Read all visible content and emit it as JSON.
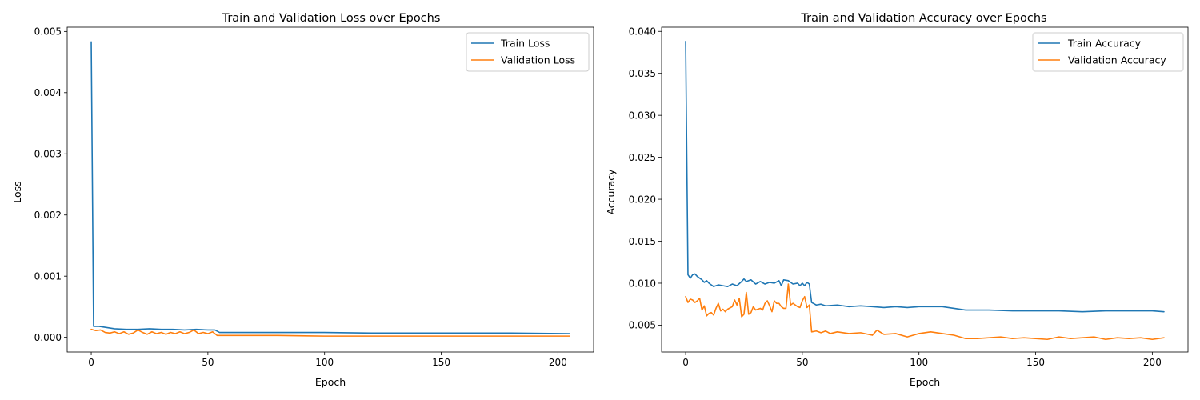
{
  "chart_data": [
    {
      "type": "line",
      "title": "Train and Validation Loss over Epochs",
      "xlabel": "Epoch",
      "ylabel": "Loss",
      "xlim": [
        -10.3,
        215.3
      ],
      "ylim": [
        -0.00024,
        0.00507
      ],
      "xticks": [
        0,
        50,
        100,
        150,
        200
      ],
      "xtick_labels": [
        "0",
        "50",
        "100",
        "150",
        "200"
      ],
      "yticks": [
        0,
        0.001,
        0.002,
        0.003,
        0.004,
        0.005
      ],
      "ytick_labels": [
        "0.000",
        "0.001",
        "0.002",
        "0.003",
        "0.004",
        "0.005"
      ],
      "grid": false,
      "legend_position": "top-right",
      "series": [
        {
          "name": "Train Loss",
          "color": "#1f77b4",
          "points": [
            [
              0,
              0.00483
            ],
            [
              1,
              0.00018
            ],
            [
              3,
              0.00018
            ],
            [
              5,
              0.00017
            ],
            [
              10,
              0.00014
            ],
            [
              15,
              0.00013
            ],
            [
              20,
              0.00013
            ],
            [
              25,
              0.00014
            ],
            [
              30,
              0.00013
            ],
            [
              35,
              0.00013
            ],
            [
              40,
              0.00012
            ],
            [
              45,
              0.00013
            ],
            [
              50,
              0.00012
            ],
            [
              53,
              0.00012
            ],
            [
              55,
              8e-05
            ],
            [
              60,
              8e-05
            ],
            [
              80,
              8e-05
            ],
            [
              100,
              8e-05
            ],
            [
              120,
              7e-05
            ],
            [
              150,
              7e-05
            ],
            [
              180,
              7e-05
            ],
            [
              205,
              6e-05
            ]
          ]
        },
        {
          "name": "Validation Loss",
          "color": "#ff7f0e",
          "points": [
            [
              0,
              0.00013
            ],
            [
              2,
              0.00011
            ],
            [
              4,
              0.00012
            ],
            [
              6,
              8e-05
            ],
            [
              8,
              7e-05
            ],
            [
              10,
              9e-05
            ],
            [
              12,
              6e-05
            ],
            [
              14,
              9e-05
            ],
            [
              16,
              5e-05
            ],
            [
              18,
              7e-05
            ],
            [
              20,
              0.00012
            ],
            [
              22,
              8e-05
            ],
            [
              24,
              5e-05
            ],
            [
              26,
              9e-05
            ],
            [
              28,
              6e-05
            ],
            [
              30,
              8e-05
            ],
            [
              32,
              5e-05
            ],
            [
              34,
              8e-05
            ],
            [
              36,
              6e-05
            ],
            [
              38,
              9e-05
            ],
            [
              40,
              6e-05
            ],
            [
              42,
              8e-05
            ],
            [
              44,
              0.00012
            ],
            [
              46,
              6e-05
            ],
            [
              48,
              8e-05
            ],
            [
              50,
              6e-05
            ],
            [
              52,
              9e-05
            ],
            [
              54,
              3e-05
            ],
            [
              60,
              3e-05
            ],
            [
              70,
              3e-05
            ],
            [
              80,
              3e-05
            ],
            [
              100,
              2e-05
            ],
            [
              120,
              2e-05
            ],
            [
              150,
              2e-05
            ],
            [
              180,
              2e-05
            ],
            [
              205,
              2e-05
            ]
          ]
        }
      ]
    },
    {
      "type": "line",
      "title": "Train and Validation Accuracy over Epochs",
      "xlabel": "Epoch",
      "ylabel": "Accuracy",
      "xlim": [
        -10.3,
        215.3
      ],
      "ylim": [
        0.0018,
        0.0405
      ],
      "xticks": [
        0,
        50,
        100,
        150,
        200
      ],
      "xtick_labels": [
        "0",
        "50",
        "100",
        "150",
        "200"
      ],
      "yticks": [
        0.005,
        0.01,
        0.015,
        0.02,
        0.025,
        0.03,
        0.035,
        0.04
      ],
      "ytick_labels": [
        "0.005",
        "0.010",
        "0.015",
        "0.020",
        "0.025",
        "0.030",
        "0.035",
        "0.040"
      ],
      "grid": false,
      "legend_position": "top-right",
      "series": [
        {
          "name": "Train Accuracy",
          "color": "#1f77b4",
          "points": [
            [
              0,
              0.0388
            ],
            [
              1,
              0.011
            ],
            [
              2,
              0.0106
            ],
            [
              3,
              0.011
            ],
            [
              4,
              0.0111
            ],
            [
              5,
              0.0108
            ],
            [
              6,
              0.0106
            ],
            [
              7,
              0.0104
            ],
            [
              8,
              0.0101
            ],
            [
              9,
              0.0103
            ],
            [
              10,
              0.01
            ],
            [
              12,
              0.0096
            ],
            [
              14,
              0.0098
            ],
            [
              16,
              0.0097
            ],
            [
              18,
              0.0096
            ],
            [
              20,
              0.0099
            ],
            [
              22,
              0.0097
            ],
            [
              24,
              0.0102
            ],
            [
              25,
              0.0105
            ],
            [
              26,
              0.0102
            ],
            [
              28,
              0.0104
            ],
            [
              30,
              0.0099
            ],
            [
              32,
              0.0102
            ],
            [
              34,
              0.0099
            ],
            [
              36,
              0.0101
            ],
            [
              38,
              0.01
            ],
            [
              40,
              0.0103
            ],
            [
              41,
              0.0097
            ],
            [
              42,
              0.0104
            ],
            [
              44,
              0.0103
            ],
            [
              46,
              0.0099
            ],
            [
              48,
              0.01
            ],
            [
              49,
              0.0097
            ],
            [
              50,
              0.01
            ],
            [
              51,
              0.0097
            ],
            [
              52,
              0.0101
            ],
            [
              53,
              0.0099
            ],
            [
              54,
              0.0077
            ],
            [
              56,
              0.0074
            ],
            [
              58,
              0.0075
            ],
            [
              60,
              0.0073
            ],
            [
              65,
              0.0074
            ],
            [
              70,
              0.0072
            ],
            [
              75,
              0.0073
            ],
            [
              80,
              0.0072
            ],
            [
              85,
              0.0071
            ],
            [
              90,
              0.0072
            ],
            [
              95,
              0.0071
            ],
            [
              100,
              0.0072
            ],
            [
              110,
              0.0072
            ],
            [
              115,
              0.007
            ],
            [
              120,
              0.0068
            ],
            [
              130,
              0.0068
            ],
            [
              140,
              0.0067
            ],
            [
              150,
              0.0067
            ],
            [
              160,
              0.0067
            ],
            [
              170,
              0.0066
            ],
            [
              180,
              0.0067
            ],
            [
              190,
              0.0067
            ],
            [
              200,
              0.0067
            ],
            [
              205,
              0.0066
            ]
          ]
        },
        {
          "name": "Validation Accuracy",
          "color": "#ff7f0e",
          "points": [
            [
              0,
              0.0084
            ],
            [
              1,
              0.0077
            ],
            [
              2,
              0.0081
            ],
            [
              3,
              0.008
            ],
            [
              4,
              0.0077
            ],
            [
              5,
              0.0079
            ],
            [
              6,
              0.0082
            ],
            [
              7,
              0.0068
            ],
            [
              8,
              0.0073
            ],
            [
              9,
              0.0061
            ],
            [
              10,
              0.0064
            ],
            [
              11,
              0.0065
            ],
            [
              12,
              0.0062
            ],
            [
              13,
              0.007
            ],
            [
              14,
              0.0076
            ],
            [
              15,
              0.0067
            ],
            [
              16,
              0.0069
            ],
            [
              17,
              0.0066
            ],
            [
              18,
              0.0069
            ],
            [
              20,
              0.0072
            ],
            [
              21,
              0.008
            ],
            [
              22,
              0.0074
            ],
            [
              23,
              0.0082
            ],
            [
              24,
              0.006
            ],
            [
              25,
              0.0063
            ],
            [
              26,
              0.0089
            ],
            [
              27,
              0.0063
            ],
            [
              28,
              0.0065
            ],
            [
              29,
              0.0072
            ],
            [
              30,
              0.0068
            ],
            [
              32,
              0.007
            ],
            [
              33,
              0.0068
            ],
            [
              34,
              0.0076
            ],
            [
              35,
              0.0079
            ],
            [
              36,
              0.0073
            ],
            [
              37,
              0.0066
            ],
            [
              38,
              0.0079
            ],
            [
              39,
              0.0076
            ],
            [
              40,
              0.0076
            ],
            [
              41,
              0.0072
            ],
            [
              42,
              0.007
            ],
            [
              43,
              0.007
            ],
            [
              44,
              0.0099
            ],
            [
              45,
              0.0074
            ],
            [
              46,
              0.0076
            ],
            [
              47,
              0.0074
            ],
            [
              48,
              0.0072
            ],
            [
              49,
              0.0071
            ],
            [
              50,
              0.0079
            ],
            [
              51,
              0.0084
            ],
            [
              52,
              0.0071
            ],
            [
              53,
              0.0074
            ],
            [
              54,
              0.0042
            ],
            [
              56,
              0.0043
            ],
            [
              58,
              0.0041
            ],
            [
              60,
              0.0043
            ],
            [
              62,
              0.004
            ],
            [
              65,
              0.0042
            ],
            [
              70,
              0.004
            ],
            [
              75,
              0.0041
            ],
            [
              80,
              0.0038
            ],
            [
              82,
              0.0044
            ],
            [
              85,
              0.0039
            ],
            [
              90,
              0.004
            ],
            [
              95,
              0.0036
            ],
            [
              100,
              0.004
            ],
            [
              105,
              0.0042
            ],
            [
              110,
              0.004
            ],
            [
              115,
              0.0038
            ],
            [
              120,
              0.0034
            ],
            [
              125,
              0.0034
            ],
            [
              130,
              0.0035
            ],
            [
              135,
              0.0036
            ],
            [
              140,
              0.0034
            ],
            [
              145,
              0.0035
            ],
            [
              150,
              0.0034
            ],
            [
              155,
              0.0033
            ],
            [
              160,
              0.0036
            ],
            [
              165,
              0.0034
            ],
            [
              170,
              0.0035
            ],
            [
              175,
              0.0036
            ],
            [
              180,
              0.0033
            ],
            [
              185,
              0.0035
            ],
            [
              190,
              0.0034
            ],
            [
              195,
              0.0035
            ],
            [
              200,
              0.0033
            ],
            [
              205,
              0.0035
            ]
          ]
        }
      ]
    }
  ]
}
